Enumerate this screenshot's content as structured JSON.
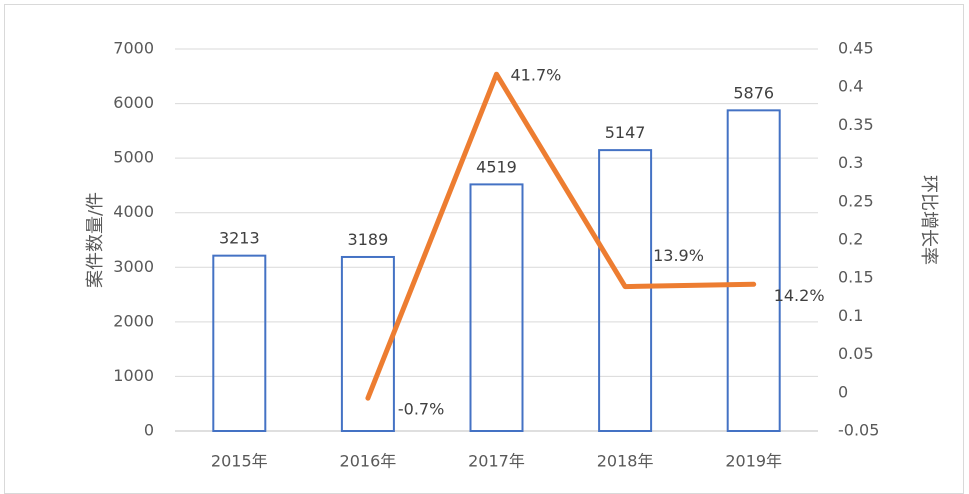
{
  "chart_data": {
    "type": "bar",
    "categories": [
      "2015年",
      "2016年",
      "2017年",
      "2018年",
      "2019年"
    ],
    "series": [
      {
        "type": "bar",
        "axis": "left",
        "values": [
          3213,
          3189,
          4519,
          5147,
          5876
        ],
        "labels": [
          "3213",
          "3189",
          "4519",
          "5147",
          "5876"
        ],
        "color": "#4472c4"
      },
      {
        "type": "line",
        "axis": "right",
        "values": [
          null,
          -0.007,
          0.417,
          0.139,
          0.142
        ],
        "labels": [
          "",
          "-0.7%",
          "41.7%",
          "13.9%",
          "14.2%"
        ],
        "color": "#ed7d31"
      }
    ],
    "ylabel": "案件数量/件",
    "y2label": "环比增长率",
    "ylim": [
      0,
      7000
    ],
    "y2lim": [
      -0.05,
      0.45
    ],
    "yticks": [
      "0",
      "1000",
      "2000",
      "3000",
      "4000",
      "5000",
      "6000",
      "7000"
    ],
    "y2ticks": [
      "-0.05",
      "0",
      "0.05",
      "0.1",
      "0.15",
      "0.2",
      "0.25",
      "0.3",
      "0.35",
      "0.4",
      "0.45"
    ],
    "grid": true,
    "legend": "none"
  }
}
